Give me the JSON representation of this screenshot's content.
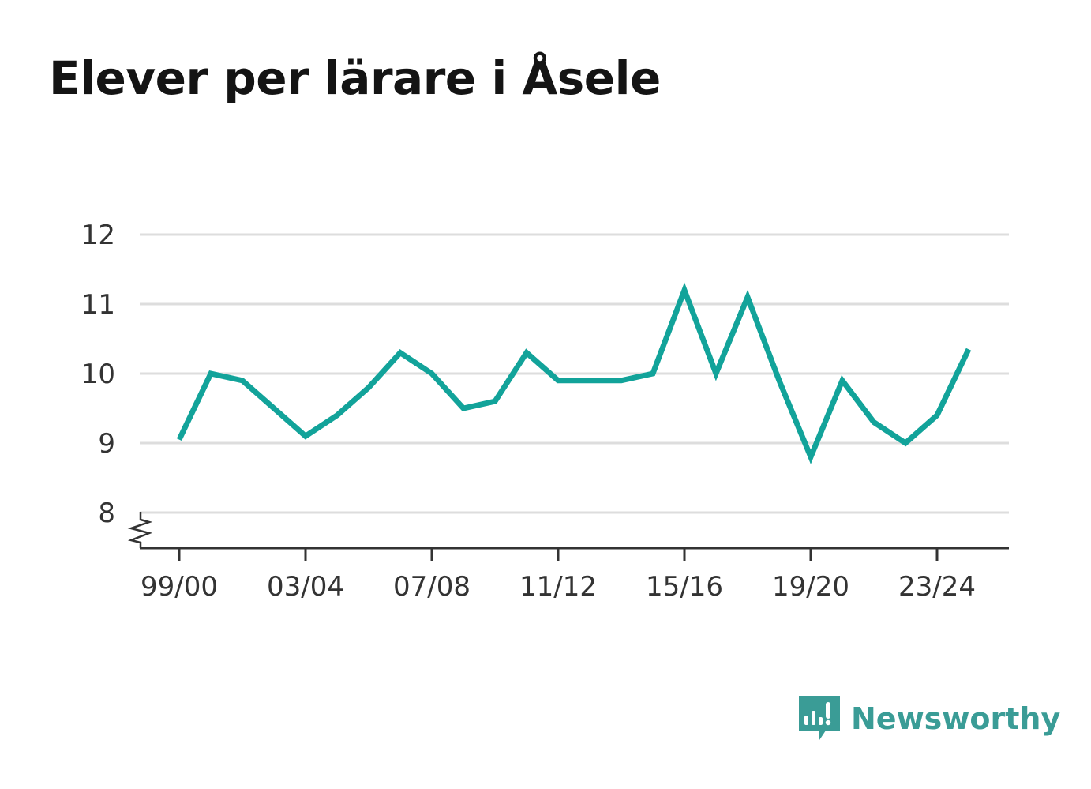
{
  "title": "Elever per lärare i Åsele",
  "brand": {
    "name": "Newsworthy",
    "icon": "newsworthy-logo-icon",
    "color": "#3a9c96"
  },
  "colors": {
    "line": "#12a39a",
    "grid": "#dddddd",
    "axis": "#333333",
    "text": "#141414"
  },
  "chart_data": {
    "type": "line",
    "title": "Elever per lärare i Åsele",
    "xlabel": "",
    "ylabel": "",
    "x_tick_labels": [
      "99/00",
      "03/04",
      "07/08",
      "11/12",
      "15/16",
      "19/20",
      "23/24"
    ],
    "y_ticks": [
      8,
      9,
      10,
      11,
      12
    ],
    "ylim": [
      7.5,
      12
    ],
    "axis_break": true,
    "grid": true,
    "legend": "none",
    "series": [
      {
        "x": [
          "99/00",
          "00/01",
          "01/02",
          "02/03",
          "03/04",
          "04/05",
          "05/06",
          "06/07",
          "07/08",
          "08/09",
          "09/10",
          "10/11",
          "11/12",
          "12/13",
          "13/14",
          "14/15",
          "15/16",
          "16/17",
          "17/18",
          "18/19",
          "19/20",
          "20/21",
          "21/22",
          "22/23",
          "23/24",
          "24/25"
        ],
        "values": [
          9.05,
          10.0,
          9.9,
          9.5,
          9.1,
          9.4,
          9.8,
          10.3,
          10.0,
          9.5,
          9.6,
          10.3,
          9.9,
          9.9,
          9.9,
          10.0,
          11.2,
          10.0,
          11.1,
          9.9,
          8.8,
          9.9,
          9.3,
          9.0,
          9.4,
          10.35
        ]
      }
    ]
  }
}
